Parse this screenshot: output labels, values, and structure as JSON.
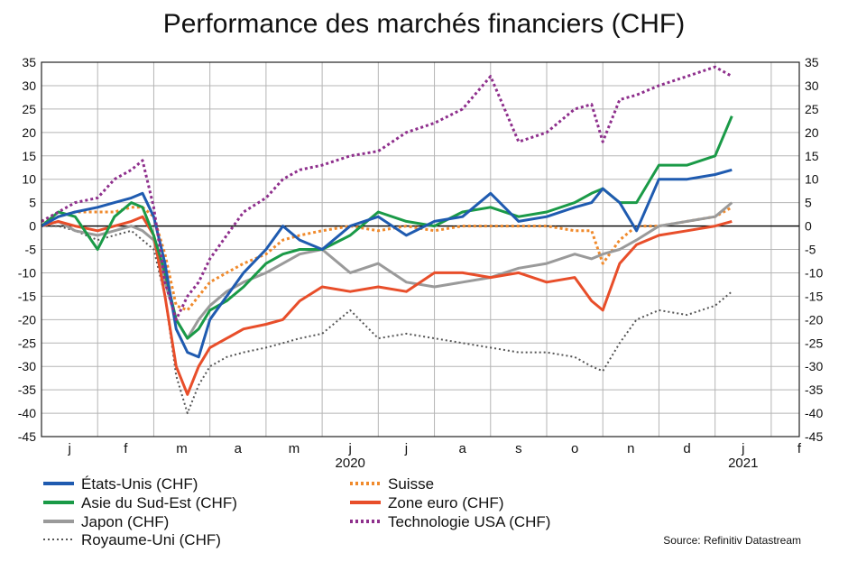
{
  "title": "Performance des marchés financiers (CHF)",
  "source": "Source: Refinitiv Datastream",
  "chart_data": {
    "type": "line",
    "title": "Performance des marchés financiers (CHF)",
    "ylim": [
      -45,
      35
    ],
    "yticks": [
      35,
      30,
      25,
      20,
      15,
      10,
      5,
      0,
      -5,
      -10,
      -15,
      -20,
      -25,
      -30,
      -35,
      -40,
      -45
    ],
    "grid": true,
    "xlim": [
      0,
      13.5
    ],
    "x_tick_labels": [
      "j",
      "f",
      "m",
      "a",
      "m",
      "j",
      "j",
      "a",
      "s",
      "o",
      "n",
      "d",
      "j",
      "f"
    ],
    "year_labels": [
      {
        "at": 5.5,
        "label": "2020"
      },
      {
        "at": 12.5,
        "label": "2021"
      }
    ],
    "legend_position": "bottom",
    "series": [
      {
        "name": "États-Unis (CHF)",
        "color": "#1f5bb0",
        "style": "solid",
        "x": [
          0,
          0.3,
          0.6,
          1.0,
          1.3,
          1.6,
          1.8,
          2.0,
          2.2,
          2.4,
          2.6,
          2.8,
          3.0,
          3.3,
          3.6,
          4.0,
          4.3,
          4.6,
          5.0,
          5.5,
          6.0,
          6.5,
          7.0,
          7.5,
          8.0,
          8.5,
          9.0,
          9.5,
          9.8,
          10.0,
          10.3,
          10.6,
          11.0,
          11.5,
          12.0,
          12.3
        ],
        "y": [
          0,
          2,
          3,
          4,
          5,
          6,
          7,
          2,
          -8,
          -22,
          -27,
          -28,
          -20,
          -15,
          -10,
          -5,
          0,
          -3,
          -5,
          0,
          2,
          -2,
          1,
          2,
          7,
          1,
          2,
          4,
          5,
          8,
          5,
          -1,
          10,
          10,
          11,
          12
        ]
      },
      {
        "name": "Asie du Sud-Est (CHF)",
        "color": "#1a9a47",
        "style": "solid",
        "x": [
          0,
          0.3,
          0.6,
          1.0,
          1.3,
          1.6,
          1.8,
          2.0,
          2.2,
          2.4,
          2.6,
          2.8,
          3.0,
          3.3,
          3.6,
          4.0,
          4.3,
          4.6,
          5.0,
          5.5,
          6.0,
          6.5,
          7.0,
          7.5,
          8.0,
          8.5,
          9.0,
          9.5,
          9.8,
          10.0,
          10.3,
          10.6,
          11.0,
          11.5,
          12.0,
          12.3
        ],
        "y": [
          0,
          3,
          2,
          -5,
          2,
          5,
          4,
          -2,
          -10,
          -20,
          -24,
          -22,
          -18,
          -16,
          -13,
          -8,
          -6,
          -5,
          -5,
          -2,
          3,
          1,
          0,
          3,
          4,
          2,
          3,
          5,
          7,
          8,
          5,
          5,
          13,
          13,
          15,
          23.5
        ]
      },
      {
        "name": "Japon (CHF)",
        "color": "#9a9a9a",
        "style": "solid",
        "x": [
          0,
          0.3,
          0.6,
          1.0,
          1.3,
          1.6,
          1.8,
          2.0,
          2.2,
          2.4,
          2.6,
          2.8,
          3.0,
          3.3,
          3.6,
          4.0,
          4.3,
          4.6,
          5.0,
          5.5,
          6.0,
          6.5,
          7.0,
          7.5,
          8.0,
          8.5,
          9.0,
          9.5,
          9.8,
          10.0,
          10.3,
          10.6,
          11.0,
          11.5,
          12.0,
          12.3
        ],
        "y": [
          0,
          1,
          -1,
          -2,
          -1,
          0,
          -1,
          -3,
          -12,
          -20,
          -24,
          -20,
          -17,
          -14,
          -12,
          -10,
          -8,
          -6,
          -5,
          -10,
          -8,
          -12,
          -13,
          -12,
          -11,
          -9,
          -8,
          -6,
          -7,
          -6,
          -5,
          -3,
          0,
          1,
          2,
          5
        ]
      },
      {
        "name": "Royaume-Uni (CHF)",
        "color": "#555555",
        "style": "dotted-fine",
        "x": [
          0,
          0.3,
          0.6,
          1.0,
          1.3,
          1.6,
          1.8,
          2.0,
          2.2,
          2.4,
          2.6,
          2.8,
          3.0,
          3.3,
          3.6,
          4.0,
          4.3,
          4.6,
          5.0,
          5.5,
          6.0,
          6.5,
          7.0,
          7.5,
          8.0,
          8.5,
          9.0,
          9.5,
          9.8,
          10.0,
          10.3,
          10.6,
          11.0,
          11.5,
          12.0,
          12.3
        ],
        "y": [
          0,
          0,
          -1,
          -3,
          -2,
          -1,
          -3,
          -5,
          -15,
          -32,
          -40,
          -34,
          -30,
          -28,
          -27,
          -26,
          -25,
          -24,
          -23,
          -18,
          -24,
          -23,
          -24,
          -25,
          -26,
          -27,
          -27,
          -28,
          -30,
          -31,
          -25,
          -20,
          -18,
          -19,
          -17,
          -14
        ]
      },
      {
        "name": "Suisse",
        "color": "#f08a2c",
        "style": "dotted-thick",
        "x": [
          0,
          0.3,
          0.6,
          1.0,
          1.3,
          1.6,
          1.8,
          2.0,
          2.2,
          2.4,
          2.6,
          2.8,
          3.0,
          3.3,
          3.6,
          4.0,
          4.3,
          4.6,
          5.0,
          5.5,
          6.0,
          6.5,
          7.0,
          7.5,
          8.0,
          8.5,
          9.0,
          9.5,
          9.8,
          10.0,
          10.3,
          10.6,
          11.0,
          11.5,
          12.0,
          12.3
        ],
        "y": [
          1,
          2,
          3,
          3,
          3,
          4,
          4,
          2,
          -6,
          -17,
          -18,
          -15,
          -12,
          -10,
          -8,
          -6,
          -3,
          -2,
          -1,
          0,
          -1,
          0,
          -1,
          0,
          0,
          0,
          0,
          -1,
          -1,
          -8,
          -3,
          0,
          0,
          1,
          2,
          4
        ]
      },
      {
        "name": "Zone euro (CHF)",
        "color": "#e84e2a",
        "style": "solid",
        "x": [
          0,
          0.3,
          0.6,
          1.0,
          1.3,
          1.6,
          1.8,
          2.0,
          2.2,
          2.4,
          2.6,
          2.8,
          3.0,
          3.3,
          3.6,
          4.0,
          4.3,
          4.6,
          5.0,
          5.5,
          6.0,
          6.5,
          7.0,
          7.5,
          8.0,
          8.5,
          9.0,
          9.5,
          9.8,
          10.0,
          10.3,
          10.6,
          11.0,
          11.5,
          12.0,
          12.3
        ],
        "y": [
          0,
          1,
          0,
          -1,
          0,
          1,
          2,
          -2,
          -15,
          -30,
          -36,
          -30,
          -26,
          -24,
          -22,
          -21,
          -20,
          -16,
          -13,
          -14,
          -13,
          -14,
          -10,
          -10,
          -11,
          -10,
          -12,
          -11,
          -16,
          -18,
          -8,
          -4,
          -2,
          -1,
          0,
          1
        ]
      },
      {
        "name": "Technologie USA (CHF)",
        "color": "#8e2f8c",
        "style": "dotted-thick",
        "x": [
          0,
          0.3,
          0.6,
          1.0,
          1.3,
          1.6,
          1.8,
          2.0,
          2.2,
          2.4,
          2.6,
          2.8,
          3.0,
          3.3,
          3.6,
          4.0,
          4.3,
          4.6,
          5.0,
          5.5,
          6.0,
          6.5,
          7.0,
          7.5,
          8.0,
          8.5,
          9.0,
          9.5,
          9.8,
          10.0,
          10.3,
          10.6,
          11.0,
          11.5,
          12.0,
          12.3
        ],
        "y": [
          1,
          3,
          5,
          6,
          10,
          12,
          14,
          4,
          -12,
          -20,
          -15,
          -12,
          -7,
          -2,
          3,
          6,
          10,
          12,
          13,
          15,
          16,
          20,
          22,
          25,
          32,
          18,
          20,
          25,
          26,
          18,
          27,
          28,
          30,
          32,
          34,
          32
        ]
      }
    ]
  }
}
